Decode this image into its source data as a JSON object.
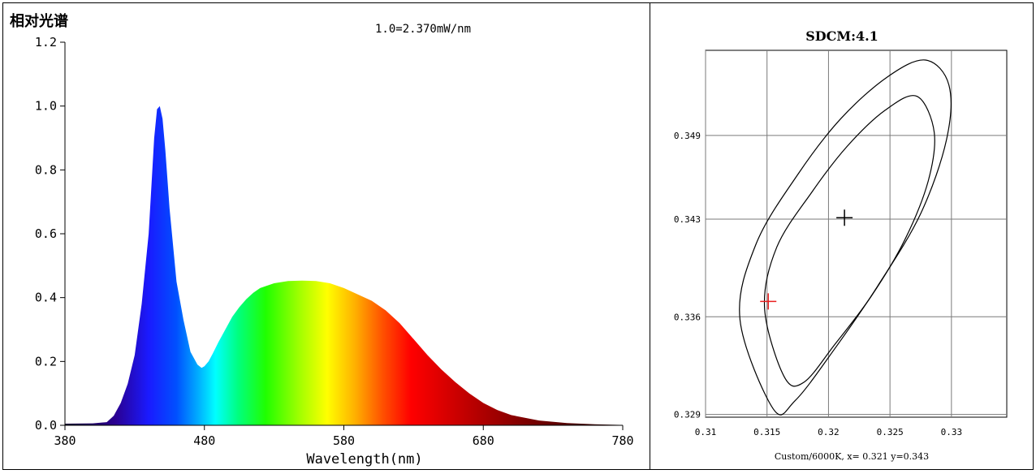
{
  "chart_data": [
    {
      "type": "area",
      "title": "相对光谱",
      "annotation": "1.0=2.370mW/nm",
      "xlabel": "Wavelength(nm)",
      "ylabel": "",
      "xlim": [
        380,
        780
      ],
      "ylim": [
        0,
        1.2
      ],
      "x_ticks": [
        380,
        480,
        580,
        680,
        780
      ],
      "y_ticks": [
        0.0,
        0.2,
        0.4,
        0.6,
        0.8,
        1.0,
        1.2
      ],
      "x_tick_labels": [
        "380",
        "480",
        "580",
        "680",
        "780"
      ],
      "y_tick_labels": [
        "0.0",
        "0.2",
        "0.4",
        "0.6",
        "0.8",
        "1.0",
        "1.2"
      ],
      "grid": false,
      "fill": "spectral colors",
      "series": [
        {
          "x": [
            380,
            400,
            410,
            415,
            420,
            425,
            430,
            435,
            440,
            442,
            444,
            446,
            448,
            450,
            452,
            455,
            460,
            465,
            470,
            475,
            478,
            480,
            483,
            486,
            490,
            495,
            500,
            505,
            510,
            515,
            520,
            530,
            540,
            550,
            560,
            570,
            580,
            590,
            600,
            610,
            620,
            630,
            640,
            650,
            660,
            670,
            680,
            690,
            700,
            720,
            740,
            760,
            780
          ],
          "y": [
            0.005,
            0.006,
            0.01,
            0.03,
            0.07,
            0.13,
            0.22,
            0.38,
            0.6,
            0.75,
            0.9,
            0.99,
            1.0,
            0.96,
            0.86,
            0.68,
            0.45,
            0.33,
            0.23,
            0.19,
            0.18,
            0.185,
            0.2,
            0.225,
            0.26,
            0.3,
            0.34,
            0.37,
            0.395,
            0.415,
            0.43,
            0.445,
            0.452,
            0.453,
            0.452,
            0.445,
            0.43,
            0.41,
            0.39,
            0.36,
            0.32,
            0.27,
            0.22,
            0.175,
            0.135,
            0.1,
            0.07,
            0.048,
            0.032,
            0.015,
            0.007,
            0.003,
            0.001
          ]
        }
      ]
    },
    {
      "type": "scatter",
      "title": "SDCM:4.1",
      "xlabel": "Custom/6000K, x= 0.321 y=0.343",
      "ylabel": "",
      "xlim": [
        0.31,
        0.3345
      ],
      "ylim": [
        0.3288,
        0.3551
      ],
      "x_ticks": [
        0.31,
        0.315,
        0.32,
        0.325,
        0.33
      ],
      "y_ticks": [
        0.329,
        0.336,
        0.343,
        0.349
      ],
      "x_tick_labels": [
        "0.31",
        "0.315",
        "0.32",
        "0.325",
        "0.33"
      ],
      "y_tick_labels": [
        "0.329",
        "0.336",
        "0.343",
        "0.349"
      ],
      "grid": true,
      "center": {
        "x": 0.321,
        "y": 0.343
      },
      "ellipses": [
        {
          "x": [
            0.3155,
            0.3128,
            0.3141,
            0.3175,
            0.321,
            0.3248,
            0.3279,
            0.3298,
            0.3296,
            0.3275,
            0.324,
            0.3205,
            0.3173,
            0.3155
          ],
          "y": [
            0.3294,
            0.3358,
            0.3412,
            0.3462,
            0.3502,
            0.3532,
            0.3544,
            0.3526,
            0.3487,
            0.3434,
            0.3382,
            0.3337,
            0.33,
            0.3294
          ]
        },
        {
          "x": [
            0.3164,
            0.3148,
            0.3158,
            0.3187,
            0.3215,
            0.3246,
            0.3272,
            0.3286,
            0.3281,
            0.3262,
            0.3235,
            0.3205,
            0.318,
            0.3164
          ],
          "y": [
            0.3317,
            0.3366,
            0.341,
            0.345,
            0.3482,
            0.3508,
            0.3518,
            0.3492,
            0.3457,
            0.3415,
            0.3375,
            0.334,
            0.3313,
            0.3317
          ]
        }
      ],
      "markers": [
        {
          "x": 0.3213,
          "y": 0.3431,
          "color": "#000000",
          "shape": "plus"
        },
        {
          "x": 0.3151,
          "y": 0.3371,
          "color": "#e82020",
          "shape": "plus"
        }
      ]
    }
  ]
}
